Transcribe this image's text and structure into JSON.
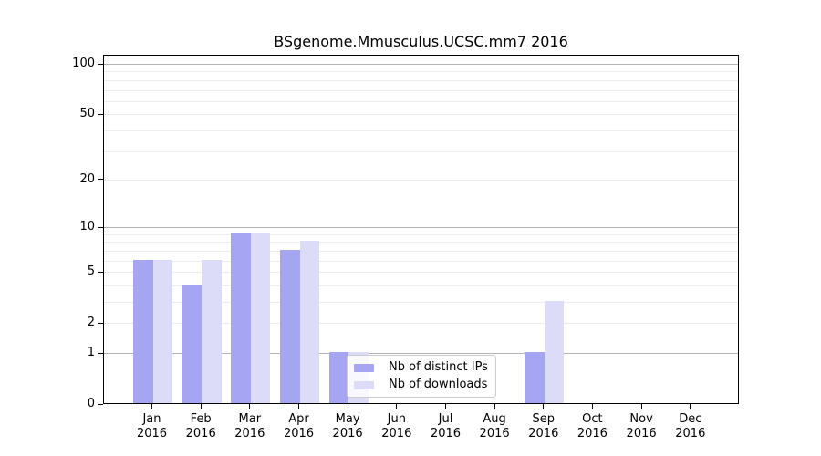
{
  "chart_data": {
    "type": "bar",
    "title": "BSgenome.Mmusculus.UCSC.mm7 2016",
    "categories": [
      "Jan 2016",
      "Feb 2016",
      "Mar 2016",
      "Apr 2016",
      "May 2016",
      "Jun 2016",
      "Jul 2016",
      "Aug 2016",
      "Sep 2016",
      "Oct 2016",
      "Nov 2016",
      "Dec 2016"
    ],
    "series": [
      {
        "name": "Nb of distinct IPs",
        "color": "#a5a5f2",
        "values": [
          6,
          4,
          9,
          7,
          1,
          0,
          0,
          0,
          1,
          0,
          0,
          0
        ]
      },
      {
        "name": "Nb of downloads",
        "color": "#dcdcf9",
        "values": [
          6,
          6,
          9,
          8,
          1,
          0,
          0,
          0,
          3,
          0,
          0,
          0
        ]
      }
    ],
    "yaxis": {
      "scale": "log10(1+x)",
      "ticks": [
        0,
        1,
        2,
        5,
        10,
        20,
        50,
        100
      ],
      "major_gridlines": [
        1,
        10,
        100
      ],
      "minor_gridlines": [
        2,
        3,
        4,
        5,
        6,
        7,
        8,
        9,
        20,
        30,
        40,
        50,
        60,
        70,
        80,
        90
      ],
      "ylim": [
        0,
        114
      ]
    },
    "grid": "horizontal",
    "legend": {
      "position": "lower center-right, inside axes"
    },
    "colors": {
      "grid_major": "#b3b3b3",
      "grid_minor": "#ececec",
      "spine": "#000000",
      "text": "#000000"
    }
  }
}
